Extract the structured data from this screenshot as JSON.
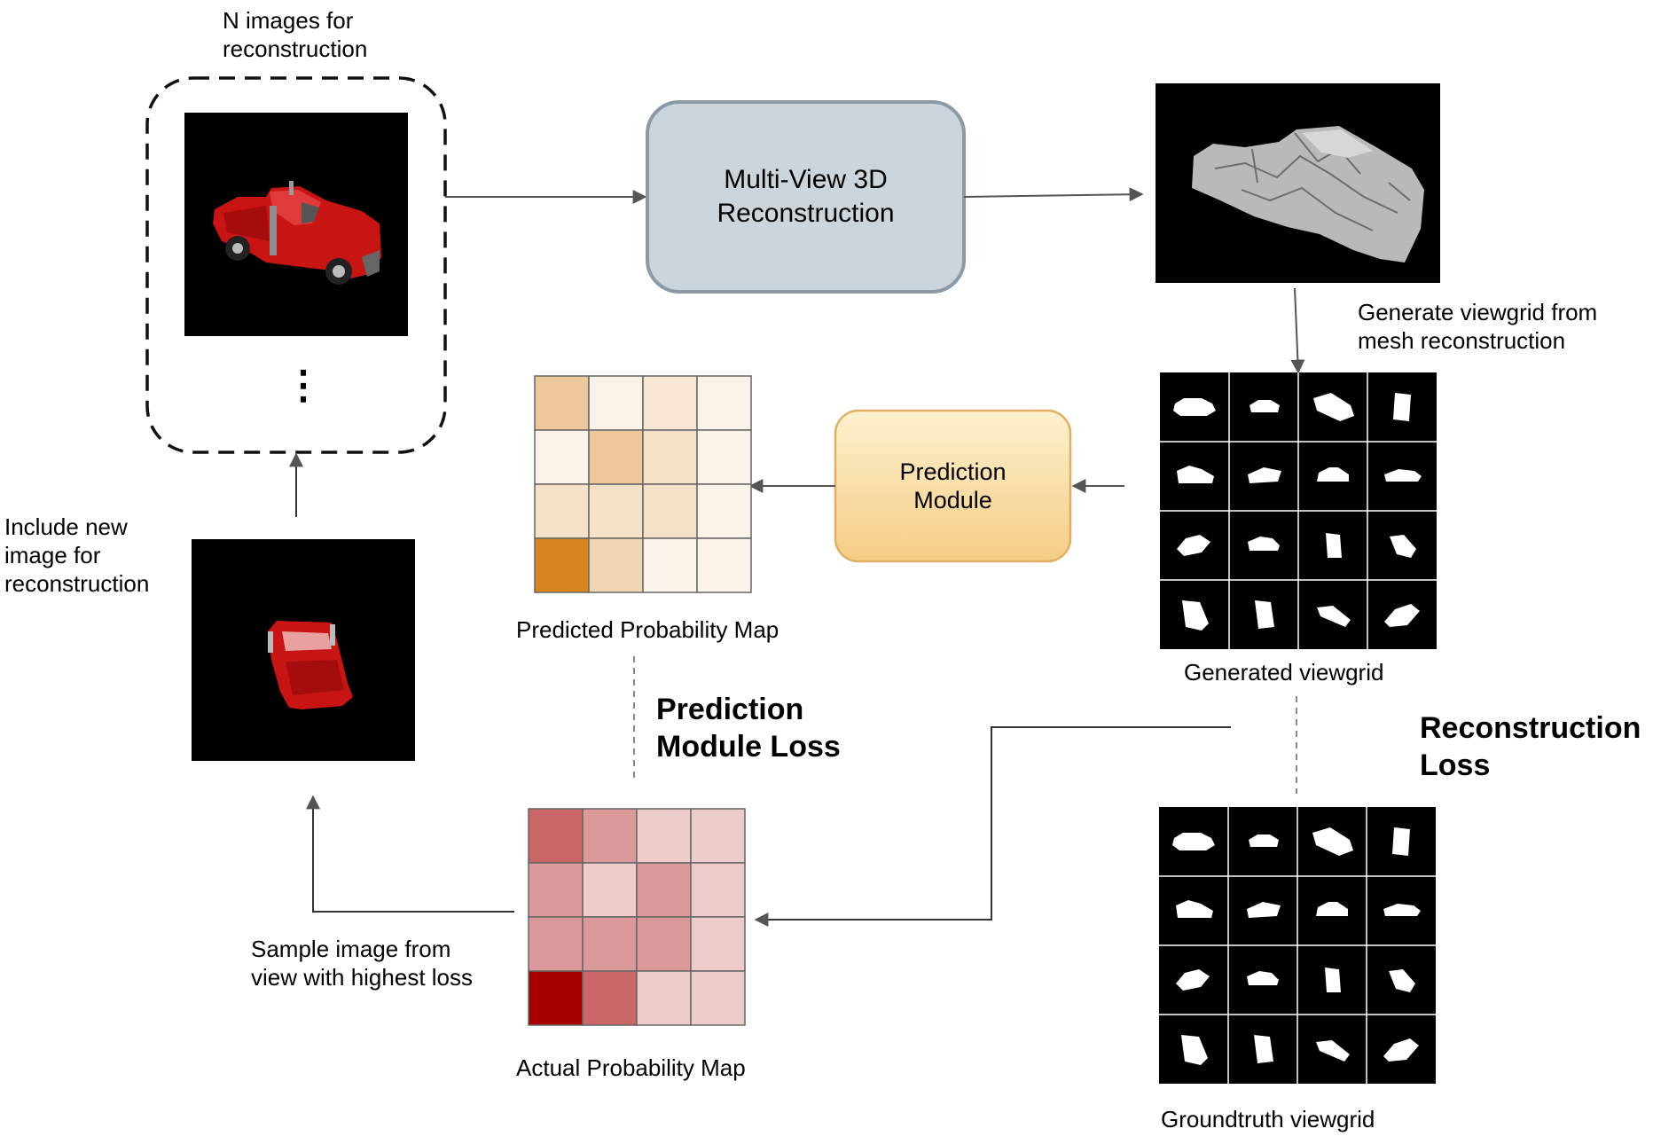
{
  "input_images": {
    "label_line1": "N images for",
    "label_line2": "reconstruction",
    "ellipsis": "⋮"
  },
  "reconstruction_box": {
    "line1": "Multi-View 3D",
    "line2": "Reconstruction",
    "fill": "#ccd5db",
    "stroke": "#8a9aa6"
  },
  "generate_viewgrid": {
    "line1": "Generate viewgrid from",
    "line2": "mesh reconstruction"
  },
  "prediction_module": {
    "line1": "Prediction",
    "line2": "Module",
    "fill_top": "#fdf1cf",
    "fill_bottom": "#f6cd85",
    "stroke": "#e0b060"
  },
  "generated_viewgrid": {
    "label": "Generated viewgrid"
  },
  "groundtruth_viewgrid": {
    "label": "Groundtruth viewgrid"
  },
  "predicted_map": {
    "label": "Predicted Probability Map",
    "base_color": "#d6851f",
    "values": [
      [
        0.45,
        0.1,
        0.2,
        0.1
      ],
      [
        0.1,
        0.45,
        0.25,
        0.1
      ],
      [
        0.25,
        0.25,
        0.25,
        0.1
      ],
      [
        1.0,
        0.35,
        0.1,
        0.1
      ]
    ]
  },
  "actual_map": {
    "label": "Actual Probability Map",
    "base_color": "#a80000",
    "values": [
      [
        0.6,
        0.4,
        0.2,
        0.2
      ],
      [
        0.4,
        0.2,
        0.4,
        0.2
      ],
      [
        0.4,
        0.4,
        0.4,
        0.2
      ],
      [
        1.0,
        0.6,
        0.2,
        0.2
      ]
    ]
  },
  "losses": {
    "prediction_line1": "Prediction",
    "prediction_line2": "Module Loss",
    "reconstruction_line1": "Reconstruction",
    "reconstruction_line2": "Loss"
  },
  "include_new": {
    "line1": "Include new",
    "line2": "image for",
    "line3": "reconstruction"
  },
  "sample_image": {
    "line1": "Sample image from",
    "line2": "view with highest loss"
  },
  "colors": {
    "truck_red": "#c91414",
    "mesh_gray": "#b9b9b9",
    "arrow": "#555555"
  }
}
